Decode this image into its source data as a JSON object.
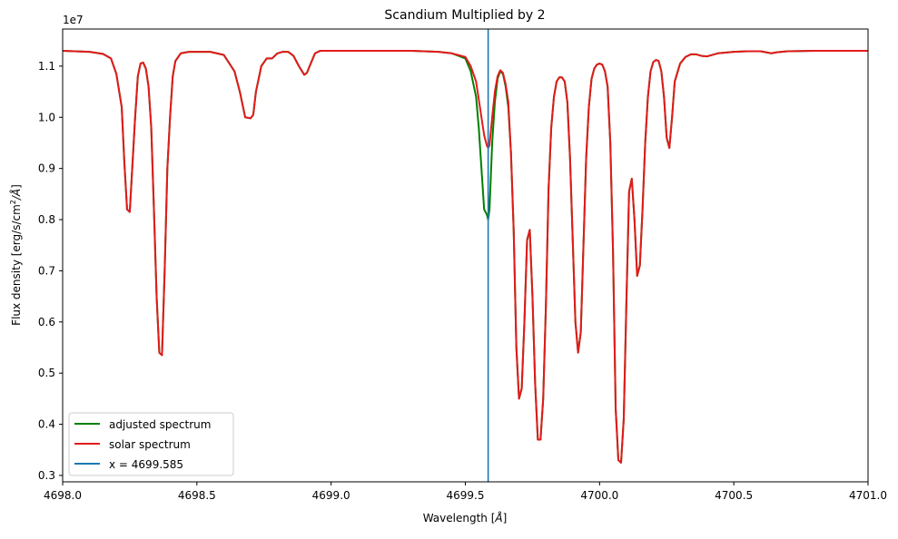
{
  "chart_data": {
    "type": "line",
    "title": "Scandium Multiplied by 2",
    "xlabel": "Wavelength [",
    "xlabel_unit": "Å",
    "xlabel_close": "]",
    "ylabel": "Flux density [erg/s/cm",
    "ylabel_sup": "2",
    "ylabel_unit": "/Å",
    "ylabel_close": "]",
    "y_offset_text": "1e7",
    "xlim": [
      4698.0,
      4701.0
    ],
    "ylim": [
      0.2875,
      1.1725
    ],
    "xticks": [
      4698.0,
      4698.5,
      4699.0,
      4699.5,
      4700.0,
      4700.5,
      4701.0
    ],
    "xtick_labels": [
      "4698.0",
      "4698.5",
      "4699.0",
      "4699.5",
      "4700.0",
      "4700.5",
      "4701.0"
    ],
    "yticks": [
      0.3,
      0.4,
      0.5,
      0.6,
      0.7,
      0.8,
      0.9,
      1.0,
      1.1
    ],
    "ytick_labels": [
      "0.3",
      "0.4",
      "0.5",
      "0.6",
      "0.7",
      "0.8",
      "0.9",
      "1.0",
      "1.1"
    ],
    "grid": false,
    "legend_position": "lower-left",
    "vline": {
      "name": "x = 4699.585",
      "x": 4699.585,
      "color": "#1f77b4"
    },
    "series": [
      {
        "name": "adjusted spectrum",
        "color": "#008000",
        "x": [
          4698.0,
          4698.1,
          4698.15,
          4698.18,
          4698.2,
          4698.22,
          4698.23,
          4698.24,
          4698.25,
          4698.27,
          4698.28,
          4698.29,
          4698.3,
          4698.31,
          4698.32,
          4698.33,
          4698.34,
          4698.35,
          4698.36,
          4698.37,
          4698.38,
          4698.39,
          4698.4,
          4698.41,
          4698.42,
          4698.44,
          4698.47,
          4698.5,
          4698.55,
          4698.6,
          4698.64,
          4698.66,
          4698.68,
          4698.7,
          4698.71,
          4698.72,
          4698.74,
          4698.76,
          4698.78,
          4698.8,
          4698.82,
          4698.84,
          4698.86,
          4698.88,
          4698.9,
          4698.91,
          4698.92,
          4698.94,
          4698.96,
          4699.0,
          4699.1,
          4699.2,
          4699.3,
          4699.4,
          4699.45,
          4699.5,
          4699.52,
          4699.54,
          4699.55,
          4699.56,
          4699.57,
          4699.58,
          4699.585,
          4699.59,
          4699.6,
          4699.61,
          4699.62,
          4699.63,
          4699.64,
          4699.65,
          4699.66,
          4699.67,
          4699.68,
          4699.69,
          4699.7,
          4699.71,
          4699.72,
          4699.73,
          4699.74,
          4699.75,
          4699.76,
          4699.77,
          4699.78,
          4699.79,
          4699.8,
          4699.81,
          4699.82,
          4699.83,
          4699.84,
          4699.85,
          4699.86,
          4699.87,
          4699.88,
          4699.89,
          4699.9,
          4699.91,
          4699.92,
          4699.93,
          4699.94,
          4699.95,
          4699.96,
          4699.97,
          4699.98,
          4699.99,
          4700.0,
          4700.01,
          4700.02,
          4700.03,
          4700.04,
          4700.05,
          4700.06,
          4700.07,
          4700.08,
          4700.09,
          4700.1,
          4700.11,
          4700.12,
          4700.13,
          4700.14,
          4700.15,
          4700.16,
          4700.17,
          4700.18,
          4700.19,
          4700.2,
          4700.21,
          4700.22,
          4700.23,
          4700.24,
          4700.25,
          4700.26,
          4700.27,
          4700.28,
          4700.3,
          4700.32,
          4700.34,
          4700.36,
          4700.38,
          4700.4,
          4700.44,
          4700.5,
          4700.55,
          4700.6,
          4700.62,
          4700.64,
          4700.66,
          4700.7,
          4700.8,
          4700.9,
          4701.0
        ],
        "y": [
          1.13,
          1.128,
          1.124,
          1.115,
          1.085,
          1.02,
          0.91,
          0.82,
          0.815,
          1.0,
          1.08,
          1.105,
          1.107,
          1.095,
          1.06,
          0.98,
          0.82,
          0.65,
          0.54,
          0.535,
          0.7,
          0.9,
          1.0,
          1.08,
          1.11,
          1.125,
          1.128,
          1.128,
          1.128,
          1.122,
          1.09,
          1.05,
          1.0,
          0.998,
          1.005,
          1.05,
          1.1,
          1.115,
          1.115,
          1.125,
          1.128,
          1.128,
          1.12,
          1.1,
          1.083,
          1.087,
          1.1,
          1.125,
          1.13,
          1.13,
          1.13,
          1.13,
          1.13,
          1.128,
          1.125,
          1.115,
          1.09,
          1.04,
          0.98,
          0.9,
          0.82,
          0.81,
          0.8,
          0.82,
          0.95,
          1.03,
          1.075,
          1.09,
          1.085,
          1.06,
          1.02,
          0.93,
          0.78,
          0.55,
          0.45,
          0.47,
          0.6,
          0.76,
          0.78,
          0.65,
          0.48,
          0.37,
          0.37,
          0.45,
          0.63,
          0.86,
          0.98,
          1.04,
          1.07,
          1.078,
          1.078,
          1.07,
          1.03,
          0.92,
          0.76,
          0.6,
          0.54,
          0.58,
          0.75,
          0.92,
          1.02,
          1.075,
          1.095,
          1.103,
          1.105,
          1.103,
          1.09,
          1.06,
          0.95,
          0.74,
          0.43,
          0.33,
          0.325,
          0.41,
          0.64,
          0.855,
          0.88,
          0.8,
          0.69,
          0.71,
          0.82,
          0.95,
          1.04,
          1.09,
          1.108,
          1.112,
          1.11,
          1.09,
          1.04,
          0.96,
          0.94,
          1.0,
          1.07,
          1.105,
          1.118,
          1.123,
          1.123,
          1.12,
          1.119,
          1.125,
          1.128,
          1.129,
          1.129,
          1.127,
          1.125,
          1.127,
          1.129,
          1.13,
          1.13,
          1.13
        ]
      },
      {
        "name": "solar spectrum",
        "color": "#e31a1c",
        "x": [
          4698.0,
          4698.1,
          4698.15,
          4698.18,
          4698.2,
          4698.22,
          4698.23,
          4698.24,
          4698.25,
          4698.27,
          4698.28,
          4698.29,
          4698.3,
          4698.31,
          4698.32,
          4698.33,
          4698.34,
          4698.35,
          4698.36,
          4698.37,
          4698.38,
          4698.39,
          4698.4,
          4698.41,
          4698.42,
          4698.44,
          4698.47,
          4698.5,
          4698.55,
          4698.6,
          4698.64,
          4698.66,
          4698.68,
          4698.7,
          4698.71,
          4698.72,
          4698.74,
          4698.76,
          4698.78,
          4698.8,
          4698.82,
          4698.84,
          4698.86,
          4698.88,
          4698.9,
          4698.91,
          4698.92,
          4698.94,
          4698.96,
          4699.0,
          4699.1,
          4699.2,
          4699.3,
          4699.4,
          4699.45,
          4699.5,
          4699.52,
          4699.54,
          4699.55,
          4699.56,
          4699.57,
          4699.58,
          4699.585,
          4699.59,
          4699.6,
          4699.61,
          4699.62,
          4699.63,
          4699.64,
          4699.65,
          4699.66,
          4699.67,
          4699.68,
          4699.69,
          4699.7,
          4699.71,
          4699.72,
          4699.73,
          4699.74,
          4699.75,
          4699.76,
          4699.77,
          4699.78,
          4699.79,
          4699.8,
          4699.81,
          4699.82,
          4699.83,
          4699.84,
          4699.85,
          4699.86,
          4699.87,
          4699.88,
          4699.89,
          4699.9,
          4699.91,
          4699.92,
          4699.93,
          4699.94,
          4699.95,
          4699.96,
          4699.97,
          4699.98,
          4699.99,
          4700.0,
          4700.01,
          4700.02,
          4700.03,
          4700.04,
          4700.05,
          4700.06,
          4700.07,
          4700.08,
          4700.09,
          4700.1,
          4700.11,
          4700.12,
          4700.13,
          4700.14,
          4700.15,
          4700.16,
          4700.17,
          4700.18,
          4700.19,
          4700.2,
          4700.21,
          4700.22,
          4700.23,
          4700.24,
          4700.25,
          4700.26,
          4700.27,
          4700.28,
          4700.3,
          4700.32,
          4700.34,
          4700.36,
          4700.38,
          4700.4,
          4700.44,
          4700.5,
          4700.55,
          4700.6,
          4700.62,
          4700.64,
          4700.66,
          4700.7,
          4700.8,
          4700.9,
          4701.0
        ],
        "y": [
          1.13,
          1.128,
          1.124,
          1.115,
          1.085,
          1.02,
          0.91,
          0.82,
          0.815,
          1.0,
          1.08,
          1.105,
          1.107,
          1.095,
          1.06,
          0.98,
          0.82,
          0.65,
          0.54,
          0.535,
          0.7,
          0.9,
          1.0,
          1.08,
          1.11,
          1.125,
          1.128,
          1.128,
          1.128,
          1.122,
          1.09,
          1.05,
          1.0,
          0.998,
          1.005,
          1.05,
          1.1,
          1.115,
          1.115,
          1.125,
          1.128,
          1.128,
          1.12,
          1.1,
          1.083,
          1.087,
          1.1,
          1.125,
          1.13,
          1.13,
          1.13,
          1.13,
          1.13,
          1.128,
          1.125,
          1.118,
          1.1,
          1.07,
          1.035,
          1.0,
          0.965,
          0.945,
          0.94,
          0.945,
          1.0,
          1.05,
          1.08,
          1.092,
          1.087,
          1.065,
          1.03,
          0.93,
          0.78,
          0.55,
          0.45,
          0.47,
          0.6,
          0.76,
          0.78,
          0.65,
          0.48,
          0.37,
          0.37,
          0.45,
          0.63,
          0.86,
          0.98,
          1.04,
          1.07,
          1.078,
          1.078,
          1.07,
          1.03,
          0.92,
          0.76,
          0.6,
          0.54,
          0.58,
          0.75,
          0.92,
          1.02,
          1.075,
          1.095,
          1.103,
          1.105,
          1.103,
          1.09,
          1.06,
          0.95,
          0.74,
          0.43,
          0.33,
          0.325,
          0.41,
          0.64,
          0.855,
          0.88,
          0.8,
          0.69,
          0.71,
          0.82,
          0.95,
          1.04,
          1.09,
          1.108,
          1.112,
          1.11,
          1.09,
          1.04,
          0.96,
          0.94,
          1.0,
          1.07,
          1.105,
          1.118,
          1.123,
          1.123,
          1.12,
          1.119,
          1.125,
          1.128,
          1.129,
          1.129,
          1.127,
          1.125,
          1.127,
          1.129,
          1.13,
          1.13,
          1.13
        ]
      }
    ]
  }
}
